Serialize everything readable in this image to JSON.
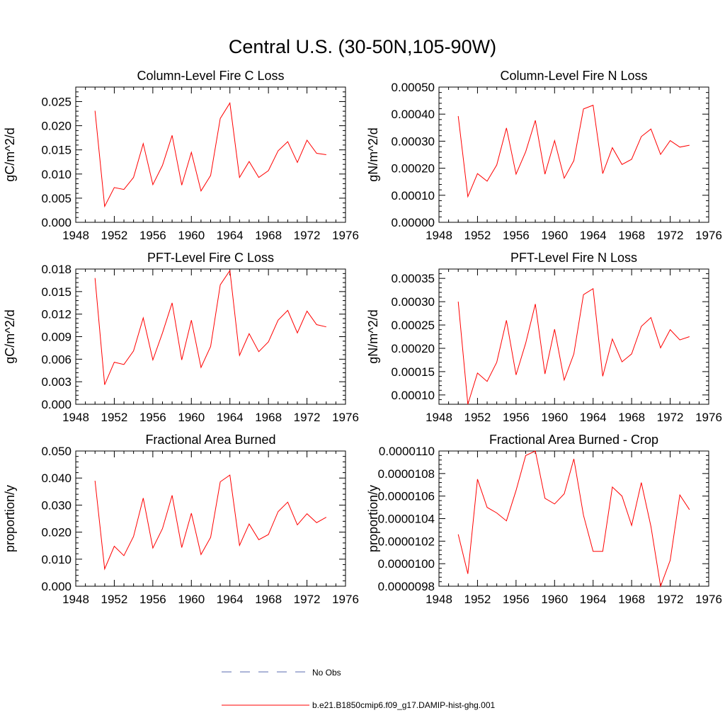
{
  "title": "Central U.S. (30-50N,105-90W)",
  "colors": {
    "series": "#ff0000",
    "obs": "#5a6bb0",
    "axis": "#000000"
  },
  "legend": {
    "placement": "bottom-center",
    "items": [
      {
        "label": "No Obs",
        "color": "#5a6bb0",
        "dashed": true
      },
      {
        "label": "b.e21.B1850cmip6.f09_g17.DAMIP-hist-ghg.001",
        "color": "#ff0000",
        "dashed": false
      }
    ]
  },
  "chart_data": [
    {
      "type": "line",
      "title": "Column-Level Fire C Loss",
      "ylabel": "gC/m^2/d",
      "xlim": [
        1948,
        1976
      ],
      "ylim": [
        0,
        0.028
      ],
      "xticks": [
        "1948",
        "1952",
        "1956",
        "1960",
        "1964",
        "1968",
        "1972",
        "1976"
      ],
      "yticks": [
        "0.000",
        "0.005",
        "0.010",
        "0.015",
        "0.020",
        "0.025"
      ],
      "x": [
        1950,
        1951,
        1952,
        1953,
        1954,
        1955,
        1956,
        1957,
        1958,
        1959,
        1960,
        1961,
        1962,
        1963,
        1964,
        1965,
        1966,
        1967,
        1968,
        1969,
        1970,
        1971,
        1972,
        1973,
        1974
      ],
      "series": [
        {
          "name": "b.e21.B1850cmip6.f09_g17.DAMIP-hist-ghg.001",
          "values": [
            0.0231,
            0.0033,
            0.0072,
            0.0068,
            0.0093,
            0.0163,
            0.0078,
            0.0118,
            0.018,
            0.0077,
            0.0145,
            0.0065,
            0.0097,
            0.0215,
            0.0247,
            0.0093,
            0.0126,
            0.0093,
            0.0107,
            0.0148,
            0.0167,
            0.0124,
            0.017,
            0.0143,
            0.014
          ]
        }
      ]
    },
    {
      "type": "line",
      "title": "Column-Level Fire N Loss",
      "ylabel": "gN/m^2/d",
      "xlim": [
        1948,
        1976
      ],
      "ylim": [
        0,
        0.0005
      ],
      "xticks": [
        "1948",
        "1952",
        "1956",
        "1960",
        "1964",
        "1968",
        "1972",
        "1976"
      ],
      "yticks": [
        "0.00000",
        "0.00010",
        "0.00020",
        "0.00030",
        "0.00040",
        "0.00050"
      ],
      "x": [
        1950,
        1951,
        1952,
        1953,
        1954,
        1955,
        1956,
        1957,
        1958,
        1959,
        1960,
        1961,
        1962,
        1963,
        1964,
        1965,
        1966,
        1967,
        1968,
        1969,
        1970,
        1971,
        1972,
        1973,
        1974
      ],
      "series": [
        {
          "name": "b.e21.B1850cmip6.f09_g17.DAMIP-hist-ghg.001",
          "values": [
            0.000393,
            9.5e-05,
            0.00018,
            0.000152,
            0.000212,
            0.000349,
            0.000178,
            0.000261,
            0.000377,
            0.000178,
            0.000302,
            0.000163,
            0.000228,
            0.000419,
            0.000433,
            0.00018,
            0.000276,
            0.000214,
            0.000233,
            0.000317,
            0.000345,
            0.000251,
            0.000302,
            0.000278,
            0.000285
          ]
        }
      ]
    },
    {
      "type": "line",
      "title": "PFT-Level Fire C Loss",
      "ylabel": "gC/m^2/d",
      "xlim": [
        1948,
        1976
      ],
      "ylim": [
        0,
        0.018
      ],
      "xticks": [
        "1948",
        "1952",
        "1956",
        "1960",
        "1964",
        "1968",
        "1972",
        "1976"
      ],
      "yticks": [
        "0.000",
        "0.003",
        "0.006",
        "0.009",
        "0.012",
        "0.015",
        "0.018"
      ],
      "x": [
        1950,
        1951,
        1952,
        1953,
        1954,
        1955,
        1956,
        1957,
        1958,
        1959,
        1960,
        1961,
        1962,
        1963,
        1964,
        1965,
        1966,
        1967,
        1968,
        1969,
        1970,
        1971,
        1972,
        1973,
        1974
      ],
      "series": [
        {
          "name": "b.e21.B1850cmip6.f09_g17.DAMIP-hist-ghg.001",
          "values": [
            0.0168,
            0.0026,
            0.0056,
            0.0053,
            0.0071,
            0.0115,
            0.0059,
            0.0095,
            0.0135,
            0.0059,
            0.0112,
            0.0049,
            0.0077,
            0.0159,
            0.0178,
            0.0065,
            0.0094,
            0.007,
            0.0083,
            0.0112,
            0.0125,
            0.0095,
            0.0124,
            0.0106,
            0.0103
          ]
        }
      ]
    },
    {
      "type": "line",
      "title": "PFT-Level Fire N Loss",
      "ylabel": "gN/m^2/d",
      "xlim": [
        1948,
        1976
      ],
      "ylim": [
        8e-05,
        0.00037
      ],
      "xticks": [
        "1948",
        "1952",
        "1956",
        "1960",
        "1964",
        "1968",
        "1972",
        "1976"
      ],
      "yticks": [
        "0.00010",
        "0.00015",
        "0.00020",
        "0.00025",
        "0.00030",
        "0.00035"
      ],
      "x": [
        1950,
        1951,
        1952,
        1953,
        1954,
        1955,
        1956,
        1957,
        1958,
        1959,
        1960,
        1961,
        1962,
        1963,
        1964,
        1965,
        1966,
        1967,
        1968,
        1969,
        1970,
        1971,
        1972,
        1973,
        1974
      ],
      "series": [
        {
          "name": "b.e21.B1850cmip6.f09_g17.DAMIP-hist-ghg.001",
          "values": [
            0.0003,
            8e-05,
            0.000147,
            0.000129,
            0.00017,
            0.00026,
            0.000143,
            0.000211,
            0.000295,
            0.000145,
            0.000241,
            0.000132,
            0.000188,
            0.000315,
            0.000328,
            0.00014,
            0.00022,
            0.000171,
            0.000188,
            0.000247,
            0.000266,
            0.000201,
            0.00024,
            0.000218,
            0.000225
          ]
        }
      ]
    },
    {
      "type": "line",
      "title": "Fractional Area Burned",
      "ylabel": "proportion/y",
      "xlim": [
        1948,
        1976
      ],
      "ylim": [
        0,
        0.05
      ],
      "xticks": [
        "1948",
        "1952",
        "1956",
        "1960",
        "1964",
        "1968",
        "1972",
        "1976"
      ],
      "yticks": [
        "0.000",
        "0.010",
        "0.020",
        "0.030",
        "0.040",
        "0.050"
      ],
      "x": [
        1950,
        1951,
        1952,
        1953,
        1954,
        1955,
        1956,
        1957,
        1958,
        1959,
        1960,
        1961,
        1962,
        1963,
        1964,
        1965,
        1966,
        1967,
        1968,
        1969,
        1970,
        1971,
        1972,
        1973,
        1974
      ],
      "series": [
        {
          "name": "b.e21.B1850cmip6.f09_g17.DAMIP-hist-ghg.001",
          "values": [
            0.039,
            0.0064,
            0.0148,
            0.0113,
            0.0184,
            0.0326,
            0.0141,
            0.0213,
            0.0336,
            0.0143,
            0.027,
            0.0117,
            0.0181,
            0.0386,
            0.0411,
            0.0151,
            0.023,
            0.0172,
            0.0191,
            0.0276,
            0.0311,
            0.0227,
            0.0268,
            0.0235,
            0.0255
          ]
        }
      ]
    },
    {
      "type": "line",
      "title": "Fractional Area Burned - Crop",
      "ylabel": "proportion/y",
      "xlim": [
        1948,
        1976
      ],
      "ylim": [
        9.8e-06,
        1.1e-05
      ],
      "xticks": [
        "1948",
        "1952",
        "1956",
        "1960",
        "1964",
        "1968",
        "1972",
        "1976"
      ],
      "yticks": [
        "0.0000098",
        "0.0000100",
        "0.0000102",
        "0.0000104",
        "0.0000106",
        "0.0000108",
        "0.0000110"
      ],
      "x": [
        1950,
        1951,
        1952,
        1953,
        1954,
        1955,
        1956,
        1957,
        1958,
        1959,
        1960,
        1961,
        1962,
        1963,
        1964,
        1965,
        1966,
        1967,
        1968,
        1969,
        1970,
        1971,
        1972,
        1973,
        1974
      ],
      "series": [
        {
          "name": "b.e21.B1850cmip6.f09_g17.DAMIP-hist-ghg.001",
          "values": [
            1.026e-05,
            9.91e-06,
            1.075e-05,
            1.05e-05,
            1.045e-05,
            1.038e-05,
            1.065e-05,
            1.096e-05,
            1.1e-05,
            1.058e-05,
            1.053e-05,
            1.062e-05,
            1.093e-05,
            1.043e-05,
            1.011e-05,
            1.011e-05,
            1.068e-05,
            1.06e-05,
            1.034e-05,
            1.072e-05,
            1.033e-05,
            9.8e-06,
            1.003e-05,
            1.061e-05,
            1.048e-05
          ]
        }
      ]
    }
  ]
}
